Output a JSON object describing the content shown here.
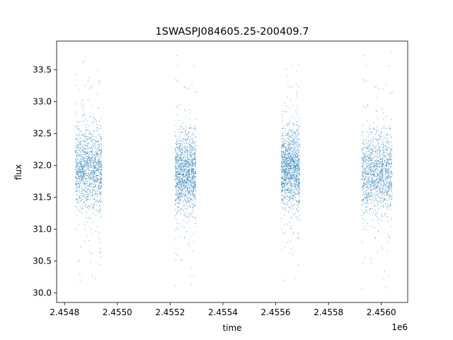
{
  "chart_data": {
    "type": "scatter",
    "title": "1SWASPJ084605.25-200409.7",
    "xlabel": "time",
    "ylabel": "flux",
    "x_offset_label": "1e6",
    "xlim": [
      2454770,
      2456100
    ],
    "ylim": [
      29.85,
      33.95
    ],
    "x_ticks": [
      {
        "value": 2454800,
        "label": "2.4548"
      },
      {
        "value": 2455000,
        "label": "2.4550"
      },
      {
        "value": 2455200,
        "label": "2.4552"
      },
      {
        "value": 2455400,
        "label": "2.4554"
      },
      {
        "value": 2455600,
        "label": "2.4556"
      },
      {
        "value": 2455800,
        "label": "2.4558"
      },
      {
        "value": 2456000,
        "label": "2.4560"
      }
    ],
    "y_ticks": [
      {
        "value": 30.0,
        "label": "30.0"
      },
      {
        "value": 30.5,
        "label": "30.5"
      },
      {
        "value": 31.0,
        "label": "31.0"
      },
      {
        "value": 31.5,
        "label": "31.5"
      },
      {
        "value": 32.0,
        "label": "32.0"
      },
      {
        "value": 32.5,
        "label": "32.5"
      },
      {
        "value": 33.0,
        "label": "33.0"
      },
      {
        "value": 33.5,
        "label": "33.5"
      }
    ],
    "grid": false,
    "point_color": "#1f77b4",
    "observing_seasons": [
      {
        "t_start": 2454840,
        "t_end": 2454940,
        "flux_center": 31.95,
        "flux_spread": 0.3,
        "flux_min": 30.1,
        "flux_max": 33.7
      },
      {
        "t_start": 2455218,
        "t_end": 2455297,
        "flux_center": 31.9,
        "flux_spread": 0.3,
        "flux_min": 30.1,
        "flux_max": 33.8
      },
      {
        "t_start": 2455620,
        "t_end": 2455690,
        "flux_center": 31.95,
        "flux_spread": 0.3,
        "flux_min": 30.1,
        "flux_max": 33.6
      },
      {
        "t_start": 2455925,
        "t_end": 2456040,
        "flux_center": 31.9,
        "flux_spread": 0.3,
        "flux_min": 30.05,
        "flux_max": 33.8
      }
    ]
  }
}
